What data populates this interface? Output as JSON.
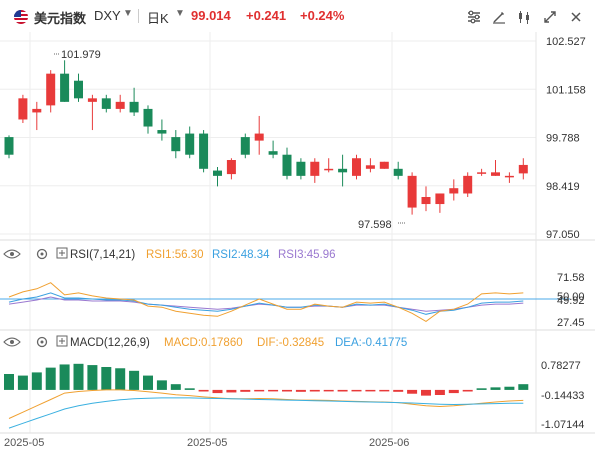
{
  "header": {
    "symbol_name": "美元指数",
    "symbol_code": "DXY",
    "period": "日K",
    "price": "99.014",
    "change": "+0.241",
    "change_pct": "+0.24%",
    "icons": [
      "indicator-settings-icon",
      "draw-line-icon",
      "compare-icon",
      "candle-style-icon",
      "fullscreen-icon",
      "settings-icon"
    ]
  },
  "colors": {
    "up": "#e83a3a",
    "down": "#1a8a5a",
    "rsi1": "#f0a030",
    "rsi2": "#3aa0e0",
    "rsi3": "#9a78d0",
    "macd": "#f0a030",
    "dif": "#f0a030",
    "dea": "#3ab0e0"
  },
  "price_axis": [
    "102.527",
    "101.158",
    "99.788",
    "98.419",
    "97.050"
  ],
  "annotations": {
    "high": "101.979",
    "low": "97.598"
  },
  "rsi": {
    "title": "RSI(7,14,21)",
    "rsi1": "RSI1:56.30",
    "rsi2": "RSI2:48.34",
    "rsi3": "RSI3:45.96",
    "axis": [
      "71.58",
      "50.00",
      "49.92",
      "27.45"
    ]
  },
  "macd": {
    "title": "MACD(12,26,9)",
    "macd": "MACD:0.17860",
    "dif": "DIF:-0.32845",
    "dea": "DEA:-0.41775",
    "axis": [
      "0.78277",
      "-0.14433",
      "-1.07144"
    ]
  },
  "time_axis": [
    "2025-05",
    "2025-05",
    "2025-06"
  ],
  "chart_data": {
    "type": "candlestick",
    "ohlc": [
      [
        99.8,
        99.85,
        99.2,
        99.3
      ],
      [
        100.3,
        101.0,
        100.2,
        100.9
      ],
      [
        100.5,
        100.8,
        100.0,
        100.6
      ],
      [
        100.7,
        101.7,
        100.5,
        101.6
      ],
      [
        101.6,
        101.98,
        100.8,
        100.8
      ],
      [
        101.4,
        101.6,
        100.8,
        100.9
      ],
      [
        100.8,
        101.0,
        100.0,
        100.9
      ],
      [
        100.9,
        101.0,
        100.5,
        100.6
      ],
      [
        100.6,
        101.0,
        100.5,
        100.8
      ],
      [
        100.8,
        101.2,
        100.4,
        100.5
      ],
      [
        100.6,
        100.7,
        99.9,
        100.1
      ],
      [
        100.0,
        100.3,
        99.7,
        99.9
      ],
      [
        99.8,
        100.0,
        99.2,
        99.4
      ],
      [
        99.9,
        100.1,
        99.2,
        99.3
      ],
      [
        99.9,
        100.0,
        98.8,
        98.9
      ],
      [
        98.85,
        98.95,
        98.4,
        98.7
      ],
      [
        98.75,
        99.2,
        98.6,
        99.15
      ],
      [
        99.8,
        99.9,
        99.2,
        99.3
      ],
      [
        99.7,
        100.4,
        99.3,
        99.9
      ],
      [
        99.4,
        99.7,
        99.2,
        99.3
      ],
      [
        99.3,
        99.5,
        98.6,
        98.7
      ],
      [
        99.1,
        99.2,
        98.6,
        98.7
      ],
      [
        98.7,
        99.2,
        98.5,
        99.1
      ],
      [
        98.9,
        99.2,
        98.8,
        98.9
      ],
      [
        98.9,
        99.3,
        98.4,
        98.8
      ],
      [
        98.7,
        99.3,
        98.6,
        99.2
      ],
      [
        98.9,
        99.2,
        98.8,
        99.0
      ],
      [
        98.9,
        99.1,
        98.9,
        99.1
      ],
      [
        98.9,
        99.1,
        98.6,
        98.7
      ],
      [
        97.8,
        98.8,
        97.6,
        98.7
      ],
      [
        97.9,
        98.4,
        97.7,
        98.1
      ],
      [
        97.9,
        98.2,
        97.65,
        98.2
      ],
      [
        98.2,
        98.6,
        98.0,
        98.35
      ],
      [
        98.2,
        98.8,
        98.1,
        98.7
      ],
      [
        98.8,
        98.9,
        98.7,
        98.8
      ],
      [
        98.7,
        99.15,
        98.7,
        98.8
      ],
      [
        98.7,
        98.8,
        98.5,
        98.7
      ],
      [
        98.77,
        99.2,
        98.6,
        99.01
      ]
    ],
    "rsi1": [
      52,
      57,
      60,
      66,
      54,
      56,
      53,
      51,
      50,
      49,
      43,
      42,
      38,
      36,
      34,
      33,
      38,
      44,
      50,
      45,
      40,
      40,
      45,
      43,
      42,
      47,
      46,
      47,
      42,
      36,
      28,
      38,
      40,
      45,
      55,
      56,
      55,
      56
    ],
    "rsi2": [
      47,
      50,
      52,
      56,
      51,
      51,
      50,
      49,
      49,
      48,
      45,
      44,
      42,
      40,
      39,
      38,
      40,
      43,
      46,
      44,
      42,
      42,
      44,
      43,
      42,
      45,
      44,
      45,
      42,
      39,
      35,
      38,
      39,
      42,
      46,
      47,
      47,
      48
    ],
    "rsi3": [
      45,
      47,
      49,
      52,
      49,
      49,
      48,
      48,
      48,
      47,
      45,
      44,
      43,
      42,
      41,
      40,
      41,
      43,
      45,
      44,
      42,
      42,
      43,
      43,
      42,
      44,
      44,
      44,
      42,
      40,
      38,
      39,
      40,
      42,
      44,
      45,
      45,
      46
    ],
    "macd_hist": [
      0.5,
      0.45,
      0.55,
      0.7,
      0.8,
      0.82,
      0.78,
      0.72,
      0.68,
      0.6,
      0.45,
      0.3,
      0.18,
      0.05,
      -0.05,
      -0.1,
      -0.08,
      -0.06,
      -0.03,
      -0.04,
      -0.05,
      -0.06,
      -0.05,
      -0.04,
      -0.05,
      -0.04,
      -0.04,
      -0.03,
      -0.06,
      -0.12,
      -0.18,
      -0.16,
      -0.1,
      -0.05,
      0.05,
      0.08,
      0.1,
      0.18
    ],
    "dif": [
      -0.9,
      -0.7,
      -0.5,
      -0.3,
      -0.1,
      -0.05,
      -0.02,
      0.0,
      0.0,
      -0.02,
      -0.06,
      -0.1,
      -0.15,
      -0.18,
      -0.22,
      -0.25,
      -0.28,
      -0.28,
      -0.27,
      -0.28,
      -0.3,
      -0.32,
      -0.32,
      -0.33,
      -0.35,
      -0.36,
      -0.37,
      -0.38,
      -0.4,
      -0.45,
      -0.5,
      -0.52,
      -0.5,
      -0.46,
      -0.42,
      -0.38,
      -0.35,
      -0.33
    ],
    "dea": [
      -1.2,
      -1.05,
      -0.9,
      -0.75,
      -0.6,
      -0.5,
      -0.42,
      -0.36,
      -0.31,
      -0.28,
      -0.26,
      -0.25,
      -0.25,
      -0.25,
      -0.26,
      -0.27,
      -0.28,
      -0.29,
      -0.3,
      -0.31,
      -0.32,
      -0.33,
      -0.34,
      -0.35,
      -0.36,
      -0.37,
      -0.38,
      -0.39,
      -0.4,
      -0.41,
      -0.43,
      -0.45,
      -0.46,
      -0.45,
      -0.44,
      -0.43,
      -0.42,
      -0.42
    ],
    "price_range": [
      97.05,
      102.527
    ],
    "rsi_range": [
      27.45,
      71.58
    ],
    "macd_range": [
      -1.07144,
      0.78277
    ]
  }
}
